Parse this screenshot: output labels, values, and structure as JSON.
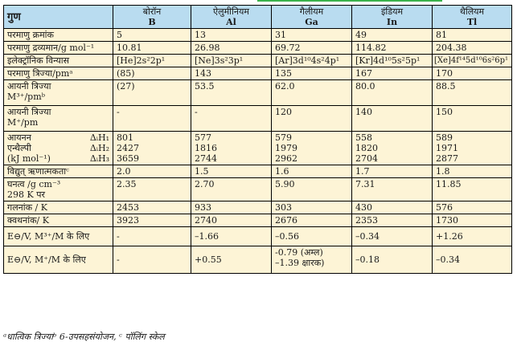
{
  "header": {
    "property_label": "गुण",
    "elements": [
      {
        "name": "बोरॉन",
        "symbol": "B"
      },
      {
        "name": "ऐलुमीनियम",
        "symbol": "Al"
      },
      {
        "name": "गैलीयम",
        "symbol": "Ga"
      },
      {
        "name": "इंडियम",
        "symbol": "In"
      },
      {
        "name": "थैलियम",
        "symbol": "Tl"
      }
    ]
  },
  "rows": {
    "atomic_number": {
      "label": "परमाणु क्रमांक",
      "values": [
        "5",
        "13",
        "31",
        "49",
        "81"
      ]
    },
    "atomic_mass": {
      "label": "परमाणु द्रव्यमान/g mol⁻¹",
      "values": [
        "10.81",
        "26.98",
        "69.72",
        "114.82",
        "204.38"
      ]
    },
    "electronic_config": {
      "label": "इलेक्ट्रॉनिक विन्यास",
      "values": [
        "[He]2s²2p¹",
        "[Ne]3s²3p¹",
        "[Ar]3d¹⁰4s²4p¹",
        "[Kr]4d¹⁰5s²5p¹",
        "[Xe]4f¹⁴5d¹⁰6s²6p¹"
      ]
    },
    "atomic_radius": {
      "label": "परमाणु त्रिज्या/pmᵃ",
      "values": [
        "(85)",
        "143",
        "135",
        "167",
        "170"
      ]
    },
    "ionic_radius_3": {
      "label_line1": "आयनी त्रिज्या",
      "label_line2": "M³⁺/pmᵇ",
      "values": [
        "(27)",
        "53.5",
        "62.0",
        "80.0",
        "88.5"
      ]
    },
    "ionic_radius_1": {
      "label_line1": "आयनी त्रिज्या",
      "label_line2": "M⁺/pm",
      "values": [
        "-",
        "-",
        "120",
        "140",
        "150"
      ]
    },
    "ionization": {
      "label_lines": [
        "आयनन",
        "एन्थैल्पी",
        "(kJ mol⁻¹)"
      ],
      "sub_labels": [
        "ΔᵢH₁",
        "ΔᵢH₂",
        "ΔᵢH₃"
      ],
      "values": [
        [
          "801",
          "2427",
          "3659"
        ],
        [
          "577",
          "1816",
          "2744"
        ],
        [
          "579",
          "1979",
          "2962"
        ],
        [
          "558",
          "1820",
          "2704"
        ],
        [
          "589",
          "1971",
          "2877"
        ]
      ]
    },
    "electronegativity": {
      "label": "विद्युत् ऋणात्मकताᶜ",
      "values": [
        "2.0",
        "1.5",
        "1.6",
        "1.7",
        "1.8"
      ]
    },
    "density": {
      "label_line1": "घनत्व /g cm⁻³",
      "label_line2": "298 K पर",
      "values": [
        "2.35",
        "2.70",
        "5.90",
        "7.31",
        "11.85"
      ]
    },
    "melting_point": {
      "label": "गलनांक / K",
      "values": [
        "2453",
        "933",
        "303",
        "430",
        "576"
      ]
    },
    "boiling_point": {
      "label": "क्वथनांक/ K",
      "values": [
        "3923",
        "2740",
        "2676",
        "2353",
        "1730"
      ]
    },
    "e_m3": {
      "label": "E⊖/V, M³⁺/M के लिए",
      "values": [
        "-",
        "–1.66",
        "–0.56",
        "–0.34",
        "+1.26"
      ]
    },
    "e_m1": {
      "label": "E⊖/V, M⁺/M के लिए",
      "values": [
        "-",
        "+0.55",
        "-0.79 (अम्ल)",
        "–0.18",
        "–0.34"
      ],
      "ga_extra": "–1.39 क्षारक)"
    }
  },
  "footnote": "ᵃधात्विक त्रिज्याᵇ 6-उपसहसंयोजन, ᶜ पॉलिंग स्केल",
  "colors": {
    "header_bg": "#b9dcf0",
    "body_bg": "#fdf4d6",
    "accent_line": "#3bb24a"
  }
}
